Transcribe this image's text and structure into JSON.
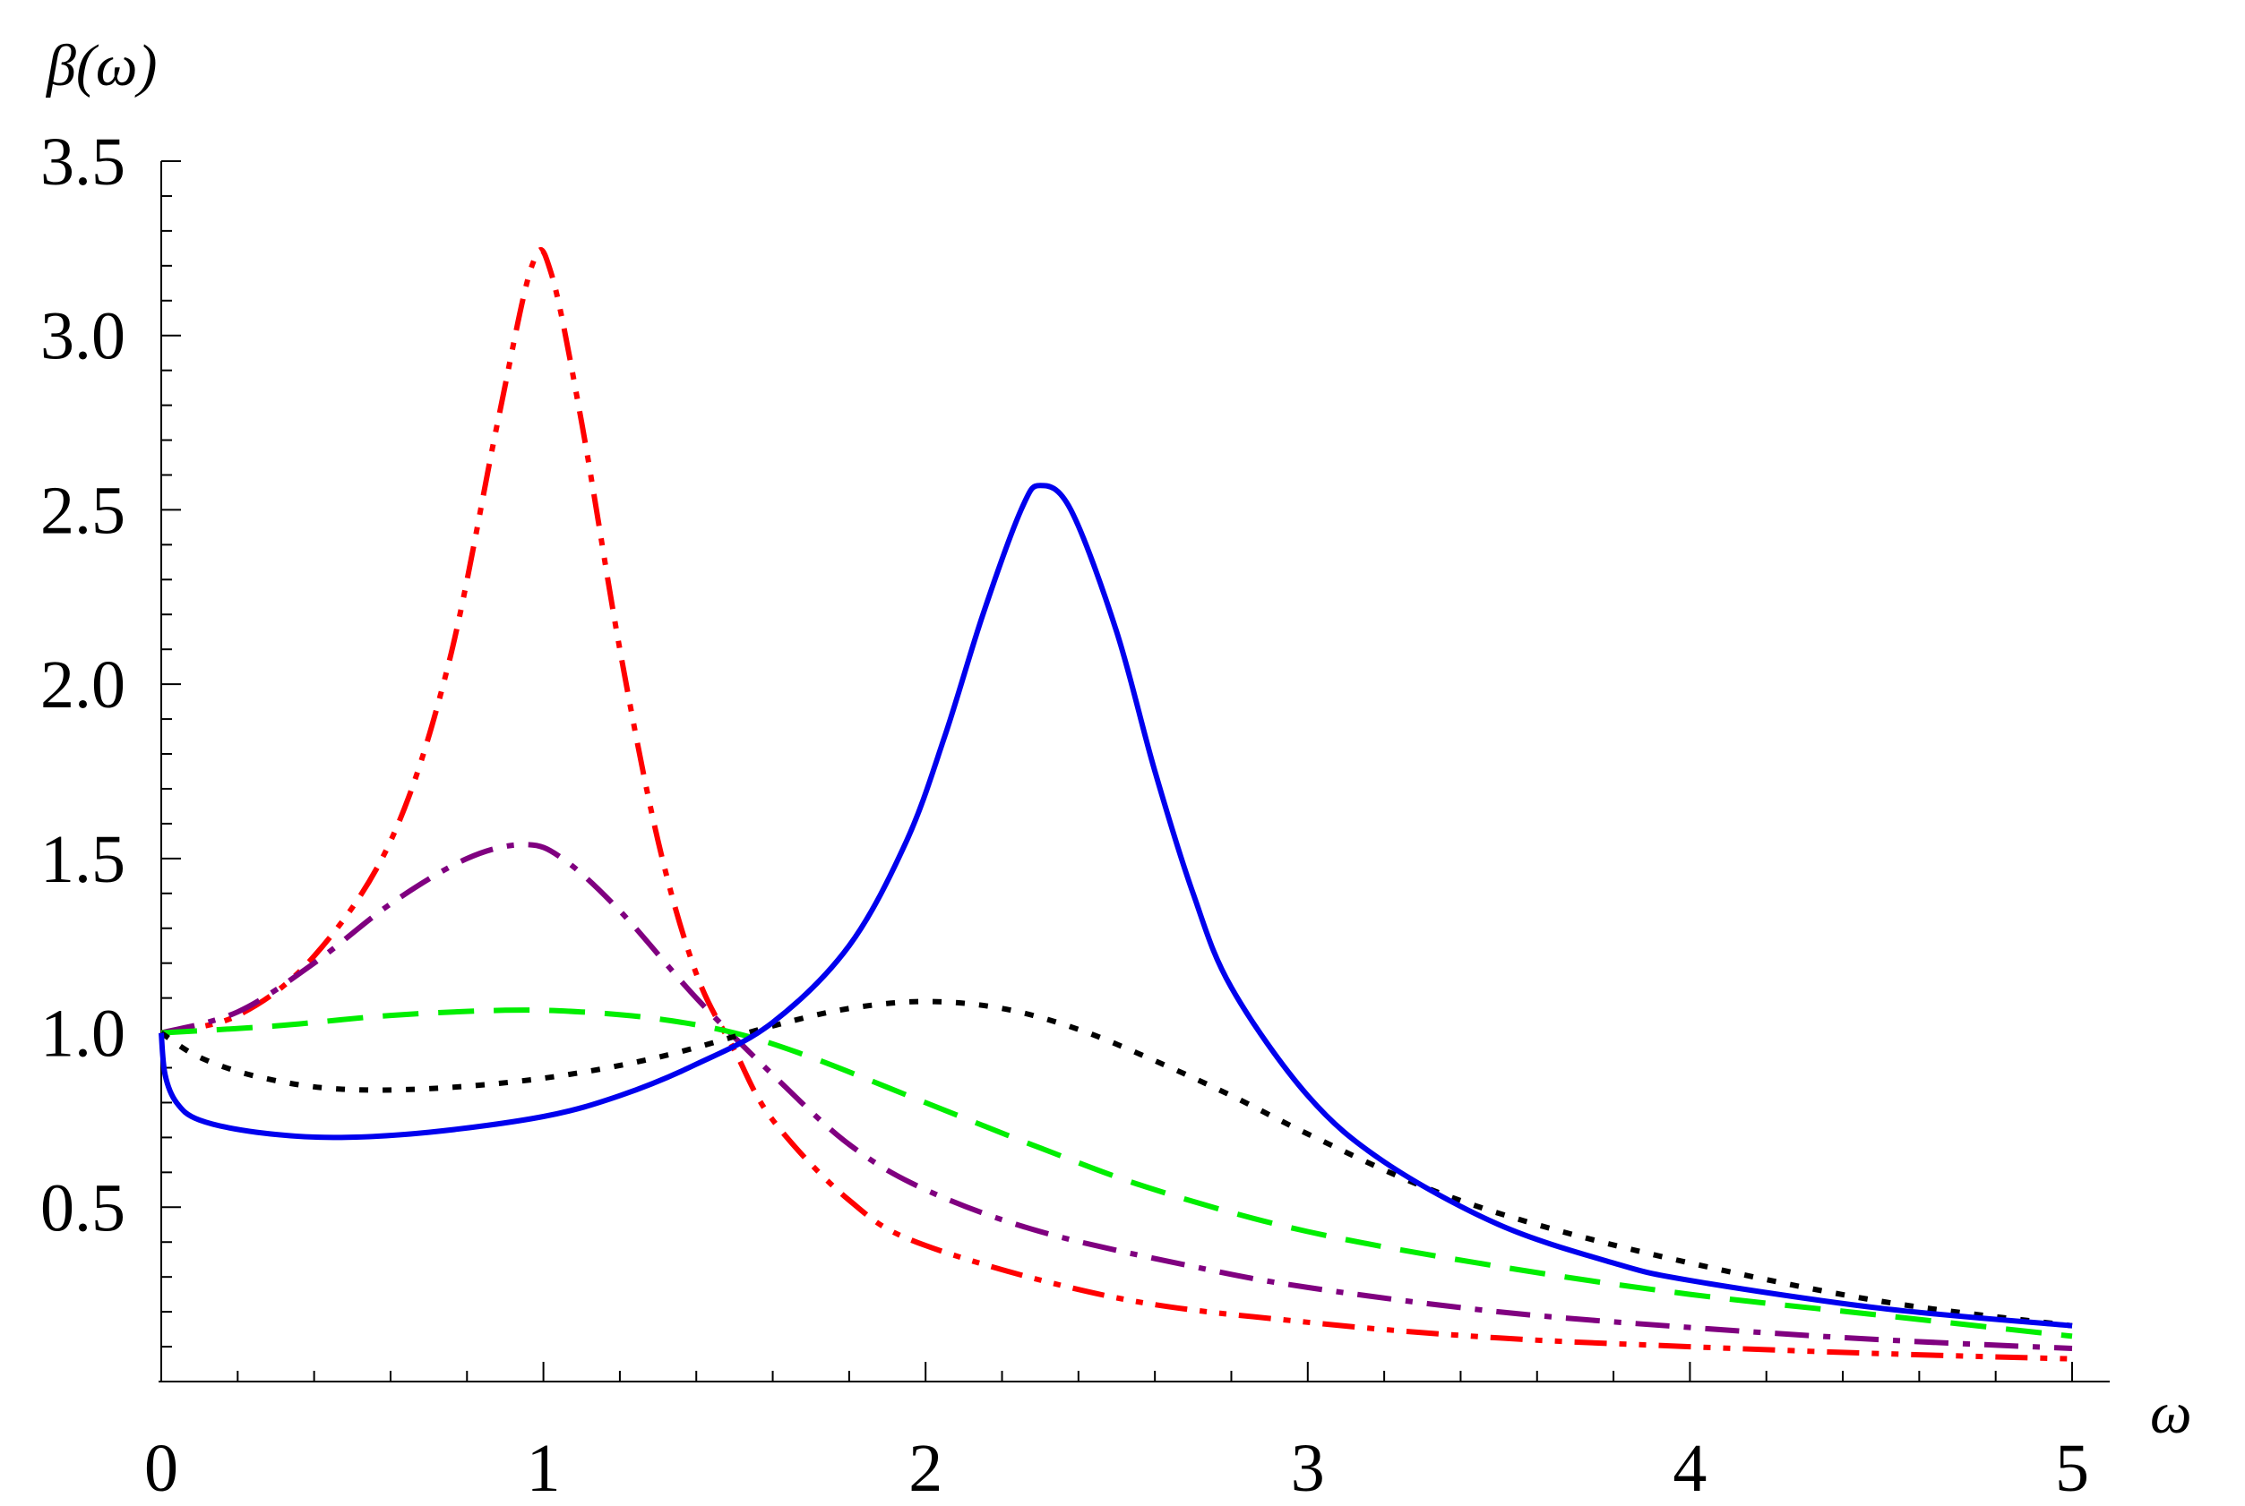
{
  "chart_data": {
    "type": "line",
    "title": "",
    "xlabel": "ω",
    "ylabel": "β(ω)",
    "xlim": [
      0,
      5.1
    ],
    "ylim": [
      0,
      3.5
    ],
    "grid": false,
    "legend": "none",
    "x_ticks": [
      {
        "value": 0,
        "label": "0"
      },
      {
        "value": 1,
        "label": "1"
      },
      {
        "value": 2,
        "label": "2"
      },
      {
        "value": 3,
        "label": "3"
      },
      {
        "value": 4,
        "label": "4"
      },
      {
        "value": 5,
        "label": "5"
      }
    ],
    "y_ticks": [
      {
        "value": 0.5,
        "label": "0.5"
      },
      {
        "value": 1.0,
        "label": "1.0"
      },
      {
        "value": 1.5,
        "label": "1.5"
      },
      {
        "value": 2.0,
        "label": "2.0"
      },
      {
        "value": 2.5,
        "label": "2.5"
      },
      {
        "value": 3.0,
        "label": "3.0"
      },
      {
        "value": 3.5,
        "label": "3.5"
      }
    ],
    "series": [
      {
        "color": "#ff0000",
        "style": "dashdotdot",
        "points": [
          [
            0,
            1.0
          ],
          [
            0.2,
            1.05
          ],
          [
            0.4,
            1.22
          ],
          [
            0.6,
            1.55
          ],
          [
            0.75,
            2.05
          ],
          [
            0.88,
            2.75
          ],
          [
            0.97,
            3.2
          ],
          [
            1.02,
            3.18
          ],
          [
            1.1,
            2.75
          ],
          [
            1.2,
            2.1
          ],
          [
            1.3,
            1.55
          ],
          [
            1.4,
            1.17
          ],
          [
            1.5,
            0.95
          ],
          [
            1.6,
            0.75
          ],
          [
            1.8,
            0.52
          ],
          [
            2.0,
            0.39
          ],
          [
            2.5,
            0.24
          ],
          [
            3.0,
            0.17
          ],
          [
            3.5,
            0.125
          ],
          [
            4.0,
            0.1
          ],
          [
            4.5,
            0.08
          ],
          [
            5.0,
            0.065
          ]
        ]
      },
      {
        "color": "#800080",
        "style": "dashdot",
        "points": [
          [
            0,
            1.0
          ],
          [
            0.2,
            1.06
          ],
          [
            0.4,
            1.2
          ],
          [
            0.6,
            1.37
          ],
          [
            0.8,
            1.5
          ],
          [
            0.95,
            1.54
          ],
          [
            1.05,
            1.5
          ],
          [
            1.2,
            1.35
          ],
          [
            1.4,
            1.1
          ],
          [
            1.6,
            0.88
          ],
          [
            1.8,
            0.68
          ],
          [
            2.0,
            0.55
          ],
          [
            2.3,
            0.43
          ],
          [
            2.7,
            0.33
          ],
          [
            3.0,
            0.27
          ],
          [
            3.5,
            0.2
          ],
          [
            4.0,
            0.155
          ],
          [
            4.5,
            0.12
          ],
          [
            5.0,
            0.095
          ]
        ]
      },
      {
        "color": "#00ee00",
        "style": "dashed",
        "points": [
          [
            0,
            1.0
          ],
          [
            0.3,
            1.02
          ],
          [
            0.6,
            1.05
          ],
          [
            0.9,
            1.065
          ],
          [
            1.1,
            1.06
          ],
          [
            1.3,
            1.04
          ],
          [
            1.5,
            1.0
          ],
          [
            1.7,
            0.93
          ],
          [
            2.0,
            0.8
          ],
          [
            2.3,
            0.67
          ],
          [
            2.6,
            0.55
          ],
          [
            3.0,
            0.43
          ],
          [
            3.5,
            0.33
          ],
          [
            4.0,
            0.25
          ],
          [
            4.5,
            0.19
          ],
          [
            5.0,
            0.13
          ]
        ]
      },
      {
        "color": "#000000",
        "style": "dotted",
        "points": [
          [
            0,
            1.0
          ],
          [
            0.1,
            0.93
          ],
          [
            0.25,
            0.875
          ],
          [
            0.45,
            0.84
          ],
          [
            0.7,
            0.84
          ],
          [
            1.0,
            0.87
          ],
          [
            1.3,
            0.93
          ],
          [
            1.6,
            1.02
          ],
          [
            1.8,
            1.07
          ],
          [
            2.0,
            1.09
          ],
          [
            2.2,
            1.07
          ],
          [
            2.4,
            1.01
          ],
          [
            2.6,
            0.92
          ],
          [
            2.8,
            0.82
          ],
          [
            3.0,
            0.71
          ],
          [
            3.3,
            0.56
          ],
          [
            3.6,
            0.45
          ],
          [
            4.0,
            0.34
          ],
          [
            4.5,
            0.23
          ],
          [
            5.0,
            0.16
          ]
        ]
      },
      {
        "color": "#0000ee",
        "style": "solid",
        "points": [
          [
            0,
            1.0
          ],
          [
            0.01,
            0.88
          ],
          [
            0.04,
            0.8
          ],
          [
            0.1,
            0.75
          ],
          [
            0.25,
            0.715
          ],
          [
            0.45,
            0.7
          ],
          [
            0.7,
            0.715
          ],
          [
            1.0,
            0.76
          ],
          [
            1.2,
            0.82
          ],
          [
            1.4,
            0.91
          ],
          [
            1.6,
            1.03
          ],
          [
            1.8,
            1.25
          ],
          [
            1.95,
            1.55
          ],
          [
            2.05,
            1.85
          ],
          [
            2.15,
            2.2
          ],
          [
            2.25,
            2.5
          ],
          [
            2.3,
            2.57
          ],
          [
            2.38,
            2.5
          ],
          [
            2.5,
            2.15
          ],
          [
            2.6,
            1.75
          ],
          [
            2.7,
            1.4
          ],
          [
            2.8,
            1.13
          ],
          [
            3.0,
            0.82
          ],
          [
            3.2,
            0.63
          ],
          [
            3.5,
            0.45
          ],
          [
            3.8,
            0.34
          ],
          [
            4.0,
            0.29
          ],
          [
            4.5,
            0.21
          ],
          [
            5.0,
            0.16
          ]
        ]
      }
    ]
  }
}
